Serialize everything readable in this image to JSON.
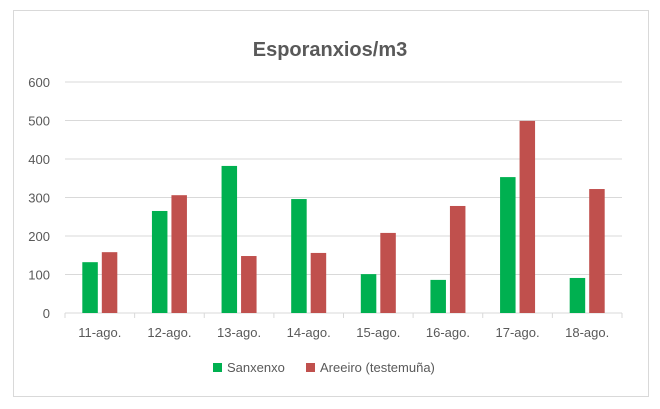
{
  "chart_data": {
    "type": "bar",
    "title": "Esporanxios/m3",
    "xlabel": "",
    "ylabel": "",
    "categories": [
      "11-ago.",
      "12-ago.",
      "13-ago.",
      "14-ago.",
      "15-ago.",
      "16-ago.",
      "17-ago.",
      "18-ago."
    ],
    "series": [
      {
        "name": "Sanxenxo",
        "color": "#00b050",
        "values": [
          132,
          265,
          382,
          296,
          101,
          86,
          353,
          91
        ]
      },
      {
        "name": "Areeiro (testemuña)",
        "color": "#c0504d",
        "values": [
          158,
          306,
          148,
          156,
          208,
          278,
          499,
          322
        ]
      }
    ],
    "ylim": [
      0,
      600
    ],
    "yticks": [
      "0",
      "100",
      "200",
      "300",
      "400",
      "500",
      "600"
    ],
    "grid": true,
    "legend": "bottom"
  }
}
